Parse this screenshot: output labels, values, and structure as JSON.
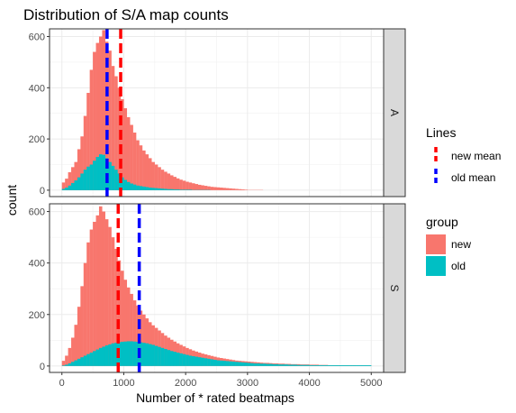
{
  "chart_data": {
    "type": "histogram",
    "title": "Distribution of S/A map counts",
    "xlabel": "Number of * rated beatmaps",
    "ylabel": "count",
    "xlim": [
      -200,
      5200
    ],
    "ylim": [
      -25,
      630
    ],
    "x_ticks": [
      0,
      1000,
      2000,
      3000,
      4000,
      5000
    ],
    "y_ticks": [
      0,
      200,
      400,
      600
    ],
    "bin_width": 50,
    "bin_start": 0,
    "facets": [
      {
        "label": "A",
        "series": [
          {
            "name": "new",
            "color": "#F8766D",
            "values": [
              30,
              45,
              70,
              90,
              110,
              160,
              210,
              290,
              380,
              470,
              540,
              575,
              600,
              625,
              580,
              545,
              485,
              445,
              400,
              355,
              320,
              285,
              255,
              225,
              195,
              175,
              155,
              140,
              125,
              110,
              100,
              90,
              80,
              72,
              65,
              58,
              52,
              46,
              41,
              37,
              33,
              30,
              27,
              24,
              21,
              19,
              17,
              15,
              13,
              12,
              11,
              10,
              9,
              8,
              7,
              6,
              5,
              4,
              3,
              2,
              1,
              1,
              1,
              1,
              1,
              0,
              0,
              0,
              0,
              0,
              0,
              0,
              0,
              0,
              0,
              0,
              0,
              0,
              0,
              0,
              0,
              0,
              0,
              0,
              0,
              0,
              0,
              0,
              0,
              0,
              0,
              0,
              0,
              0,
              0,
              0,
              0,
              0,
              0,
              0
            ]
          },
          {
            "name": "old",
            "color": "#00BFC4",
            "values": [
              5,
              10,
              18,
              28,
              38,
              50,
              65,
              80,
              92,
              100,
              115,
              130,
              140,
              138,
              125,
              110,
              95,
              80,
              65,
              50,
              40,
              32,
              26,
              22,
              18,
              16,
              14,
              12,
              10,
              9,
              8,
              7,
              6,
              5,
              4,
              4,
              3,
              3,
              2,
              2,
              2,
              2,
              1,
              1,
              1,
              1,
              1,
              1,
              0,
              0,
              0,
              0,
              0,
              0,
              0,
              0,
              0,
              0,
              0,
              0,
              0,
              0,
              0,
              0,
              0,
              0,
              0,
              0,
              0,
              0,
              0,
              0,
              0,
              0,
              0,
              0,
              0,
              0,
              0,
              0,
              0,
              0,
              0,
              0,
              0,
              0,
              0,
              0,
              0,
              0,
              0,
              0,
              0,
              0,
              0,
              0,
              0,
              0,
              0,
              0
            ]
          }
        ],
        "lines": [
          {
            "name": "old mean",
            "x": 730,
            "color": "#0000FF"
          },
          {
            "name": "new mean",
            "x": 950,
            "color": "#FF0000"
          }
        ]
      },
      {
        "label": "S",
        "series": [
          {
            "name": "new",
            "color": "#F8766D",
            "values": [
              20,
              40,
              70,
              110,
              160,
              230,
              310,
              400,
              480,
              530,
              560,
              585,
              620,
              600,
              570,
              540,
              500,
              455,
              410,
              370,
              335,
              305,
              280,
              255,
              235,
              215,
              200,
              185,
              170,
              158,
              148,
              138,
              128,
              118,
              110,
              102,
              95,
              88,
              82,
              76,
              70,
              65,
              60,
              56,
              52,
              48,
              45,
              42,
              39,
              36,
              33,
              31,
              29,
              27,
              25,
              23,
              21,
              20,
              19,
              18,
              17,
              16,
              15,
              14,
              13,
              12,
              12,
              11,
              10,
              10,
              9,
              9,
              8,
              8,
              7,
              7,
              7,
              6,
              6,
              6,
              5,
              5,
              5,
              4,
              4,
              4,
              3,
              3,
              3,
              3,
              2,
              2,
              2,
              2,
              2,
              1,
              1,
              1,
              1,
              1
            ]
          },
          {
            "name": "old",
            "color": "#00BFC4",
            "values": [
              2,
              5,
              10,
              16,
              22,
              28,
              34,
              40,
              46,
              52,
              58,
              64,
              70,
              75,
              80,
              84,
              88,
              90,
              92,
              94,
              95,
              96,
              96,
              95,
              94,
              92,
              90,
              88,
              85,
              82,
              78,
              74,
              70,
              66,
              62,
              58,
              55,
              52,
              49,
              46,
              43,
              40,
              38,
              36,
              34,
              32,
              30,
              28,
              26,
              24,
              22,
              21,
              20,
              19,
              18,
              17,
              16,
              15,
              14,
              13,
              12,
              11,
              10,
              10,
              9,
              9,
              8,
              8,
              7,
              7,
              6,
              6,
              6,
              5,
              5,
              5,
              4,
              4,
              4,
              4,
              3,
              3,
              3,
              3,
              3,
              3,
              3,
              3,
              3,
              3,
              3,
              3,
              3,
              3,
              3,
              3,
              3,
              3,
              3,
              3
            ]
          }
        ],
        "lines": [
          {
            "name": "new mean",
            "x": 910,
            "color": "#FF0000"
          },
          {
            "name": "old mean",
            "x": 1250,
            "color": "#0000FF"
          }
        ]
      }
    ],
    "legend": {
      "lines_title": "Lines",
      "lines": [
        {
          "label": "new mean",
          "color": "#FF0000"
        },
        {
          "label": "old mean",
          "color": "#0000FF"
        }
      ],
      "group_title": "group",
      "groups": [
        {
          "label": "new",
          "color": "#F8766D"
        },
        {
          "label": "old",
          "color": "#00BFC4"
        }
      ]
    }
  }
}
